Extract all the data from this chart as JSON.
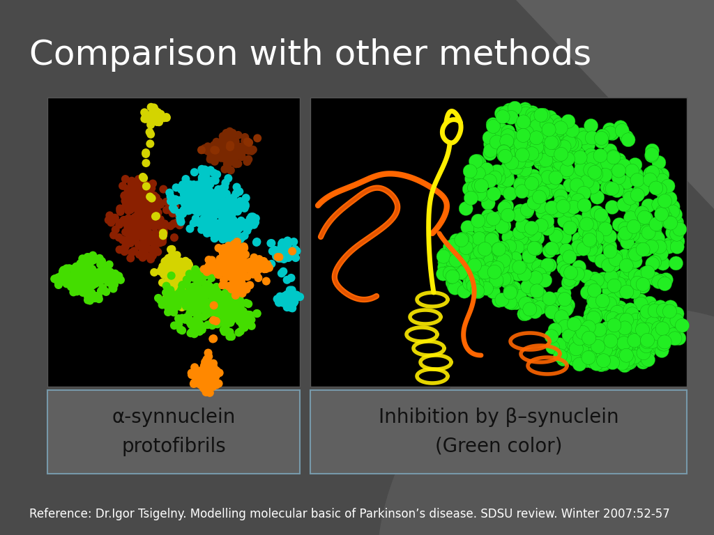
{
  "title": "Comparison with other methods",
  "title_color": "#ffffff",
  "title_fontsize": 36,
  "bg_color": "#4a4a4a",
  "label1": "α-synnuclein\nprotofibrils",
  "label2": "Inhibition by β–synuclein\n(Green color)",
  "label_fontsize": 20,
  "label_color": "#111111",
  "reference": "Reference: Dr.Igor Tsigelny. Modelling molecular basic of Parkinson’s disease. SDSU review. Winter 2007:52-57",
  "ref_fontsize": 12,
  "ref_color": "#ffffff",
  "box_edge_color": "#7799aa",
  "slide_bg": "#4d4d4d",
  "label_box_bg": "#606060"
}
